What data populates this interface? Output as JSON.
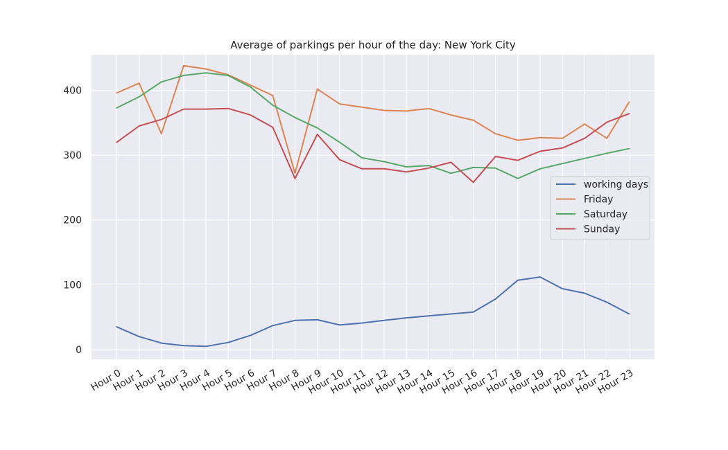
{
  "chart_data": {
    "type": "line",
    "title": "Average of parkings per hour of the day: New York City",
    "xlabel": "",
    "ylabel": "",
    "categories": [
      "Hour 0",
      "Hour 1",
      "Hour 2",
      "Hour 3",
      "Hour 4",
      "Hour 5",
      "Hour 6",
      "Hour 7",
      "Hour 8",
      "Hour 9",
      "Hour 10",
      "Hour 11",
      "Hour 12",
      "Hour 13",
      "Hour 14",
      "Hour 15",
      "Hour 16",
      "Hour 17",
      "Hour 18",
      "Hour 19",
      "Hour 20",
      "Hour 21",
      "Hour 22",
      "Hour 23"
    ],
    "ylim": [
      -15,
      455
    ],
    "yticks": [
      0,
      100,
      200,
      300,
      400
    ],
    "grid": true,
    "legend_position": "center-right",
    "series": [
      {
        "name": "working days",
        "color": "#4c72b0",
        "values": [
          35,
          20,
          10,
          6,
          5,
          11,
          22,
          37,
          45,
          46,
          38,
          41,
          45,
          49,
          52,
          55,
          58,
          78,
          107,
          112,
          94,
          87,
          73,
          55
        ]
      },
      {
        "name": "Friday",
        "color": "#dd8452",
        "values": [
          396,
          411,
          333,
          438,
          433,
          424,
          408,
          392,
          272,
          402,
          379,
          374,
          369,
          368,
          372,
          362,
          354,
          333,
          323,
          327,
          326,
          348,
          326,
          382
        ]
      },
      {
        "name": "Saturday",
        "color": "#55a868",
        "values": [
          373,
          390,
          413,
          423,
          427,
          423,
          405,
          377,
          358,
          342,
          320,
          296,
          290,
          282,
          284,
          272,
          281,
          280,
          264,
          279,
          287,
          295,
          303,
          310
        ]
      },
      {
        "name": "Sunday",
        "color": "#c44e52",
        "values": [
          320,
          345,
          355,
          371,
          371,
          372,
          362,
          343,
          264,
          332,
          293,
          279,
          279,
          274,
          280,
          289,
          258,
          298,
          292,
          306,
          311,
          326,
          351,
          364
        ]
      }
    ]
  }
}
